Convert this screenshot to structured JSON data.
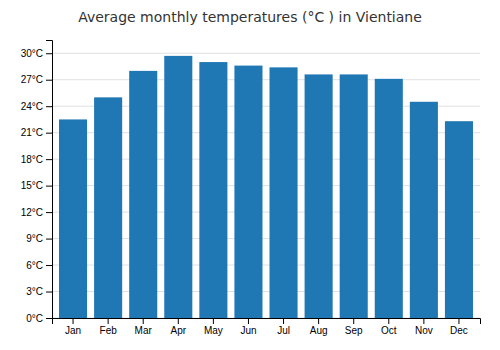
{
  "chart_data": {
    "type": "bar",
    "title": "Average monthly temperatures (°C ) in Vientiane",
    "categories": [
      "Jan",
      "Feb",
      "Mar",
      "Apr",
      "May",
      "Jun",
      "Jul",
      "Aug",
      "Sep",
      "Oct",
      "Nov",
      "Dec"
    ],
    "values": [
      22.5,
      25.0,
      28.0,
      29.7,
      29.0,
      28.6,
      28.4,
      27.6,
      27.6,
      27.1,
      24.5,
      22.3
    ],
    "ylim": [
      0,
      31.5
    ],
    "yticks": [
      {
        "value": 0,
        "label": "0°C"
      },
      {
        "value": 3,
        "label": "3°C"
      },
      {
        "value": 6,
        "label": "6°C"
      },
      {
        "value": 9,
        "label": "9°C"
      },
      {
        "value": 12,
        "label": "12°C"
      },
      {
        "value": 15,
        "label": "15°C"
      },
      {
        "value": 18,
        "label": "18°C"
      },
      {
        "value": 21,
        "label": "21°C"
      },
      {
        "value": 24,
        "label": "24°C"
      },
      {
        "value": 27,
        "label": "27°C"
      },
      {
        "value": 30,
        "label": "30°C"
      }
    ],
    "grid": true
  }
}
